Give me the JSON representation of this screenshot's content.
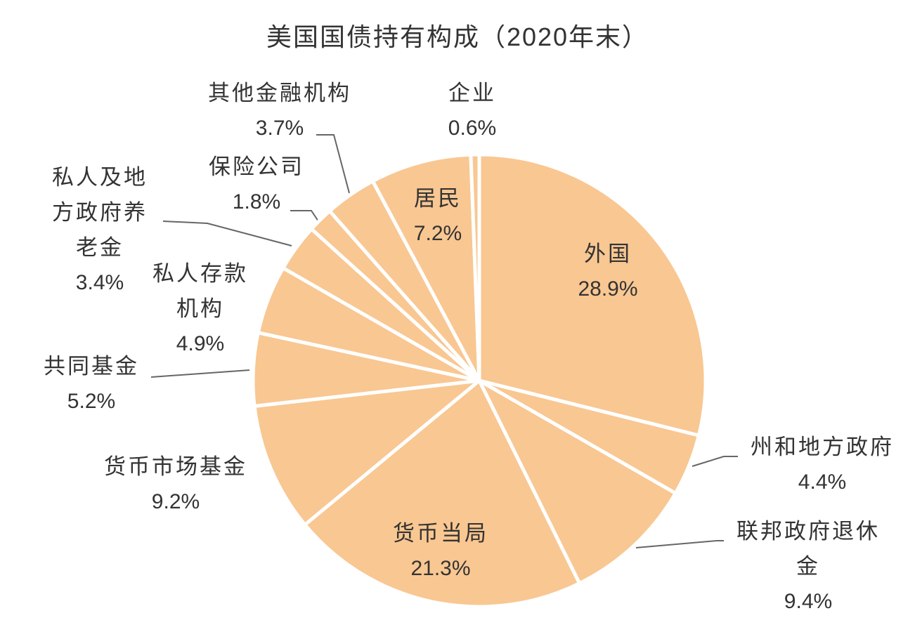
{
  "chart_data": {
    "type": "pie",
    "title": "美国国债持有构成（2020年末）",
    "categories": [
      "外国",
      "州和地方政府",
      "联邦政府退休金",
      "货币当局",
      "货币市场基金",
      "共同基金",
      "私人存款机构",
      "私人及地方政府养老金",
      "保险公司",
      "其他金融机构",
      "居民",
      "企业"
    ],
    "values": [
      28.9,
      4.4,
      9.4,
      21.3,
      9.2,
      5.2,
      4.9,
      3.4,
      1.8,
      3.7,
      7.2,
      0.6
    ],
    "value_labels": [
      "28.9%",
      "4.4%",
      "9.4%",
      "21.3%",
      "9.2%",
      "5.2%",
      "4.9%",
      "3.4%",
      "1.8%",
      "3.7%",
      "7.2%",
      "0.6%"
    ],
    "color": "#f9c792"
  }
}
